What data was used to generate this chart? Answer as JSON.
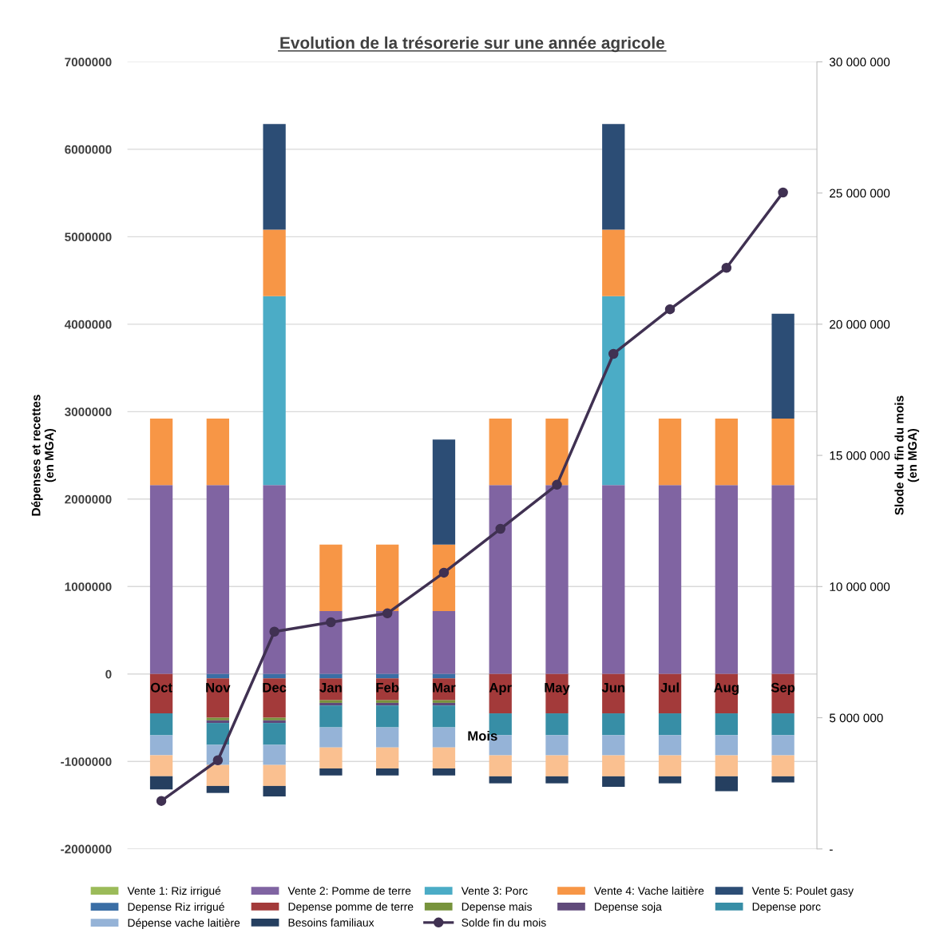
{
  "chart_data": {
    "type": "bar",
    "stacked": true,
    "title": "Evolution de la trésorerie sur une année agricole",
    "xlabel": "Mois",
    "ylabel": "Dépenses et recettes\n(en MGA)",
    "y2label": "Slode du fin du mois\n(en MGA)",
    "categories": [
      "Oct",
      "Nov",
      "Dec",
      "Jan",
      "Feb",
      "Mar",
      "Apr",
      "May",
      "Jun",
      "Jul",
      "Aug",
      "Sep"
    ],
    "ylim": [
      -2000000,
      7000000
    ],
    "yticks": [
      -2000000,
      -1000000,
      0,
      1000000,
      2000000,
      3000000,
      4000000,
      5000000,
      6000000,
      7000000
    ],
    "y2lim": [
      0,
      30000000
    ],
    "y2ticks": [
      {
        "value": 0,
        "label": "-"
      },
      {
        "value": 5000000,
        "label": "5 000 000"
      },
      {
        "value": 10000000,
        "label": "10 000 000"
      },
      {
        "value": 15000000,
        "label": "15 000 000"
      },
      {
        "value": 20000000,
        "label": "20 000 000"
      },
      {
        "value": 25000000,
        "label": "25 000 000"
      },
      {
        "value": 30000000,
        "label": "30 000 000"
      }
    ],
    "grid": "y",
    "legend": "bottom",
    "series": [
      {
        "name": "Vente 1: Riz irrigué",
        "color": "#9bbb59",
        "values": [
          0,
          0,
          0,
          0,
          0,
          0,
          0,
          0,
          0,
          0,
          0,
          0
        ]
      },
      {
        "name": "Vente 2: Pomme de terre",
        "color": "#8064a2",
        "values": [
          2160000,
          2160000,
          2160000,
          720000,
          720000,
          720000,
          2160000,
          2160000,
          2160000,
          2160000,
          2160000,
          2160000
        ]
      },
      {
        "name": "Vente 3: Porc",
        "color": "#4bacc6",
        "values": [
          0,
          0,
          2160000,
          0,
          0,
          0,
          0,
          0,
          2160000,
          0,
          0,
          0
        ]
      },
      {
        "name": "Vente 4: Vache laitière",
        "color": "#f79646",
        "values": [
          760000,
          760000,
          760000,
          760000,
          760000,
          760000,
          760000,
          760000,
          760000,
          760000,
          760000,
          760000
        ]
      },
      {
        "name": "Vente 5: Poulet gasy",
        "color": "#2c4d75",
        "values": [
          0,
          0,
          1210000,
          0,
          0,
          1200000,
          0,
          0,
          1210000,
          0,
          0,
          1200000
        ]
      },
      {
        "name": "Depense Riz irrigué",
        "color": "#3a6ea5",
        "values": [
          0,
          -50000,
          -50000,
          -50000,
          -50000,
          -50000,
          0,
          0,
          0,
          0,
          0,
          0
        ]
      },
      {
        "name": "Depense pomme de terre",
        "color": "#a33a3a",
        "values": [
          -450000,
          -450000,
          -450000,
          -250000,
          -250000,
          -250000,
          -450000,
          -450000,
          -450000,
          -450000,
          -450000,
          -450000
        ]
      },
      {
        "name": "Depense mais",
        "color": "#77933c",
        "values": [
          0,
          -30000,
          -30000,
          -30000,
          -30000,
          -30000,
          0,
          0,
          0,
          0,
          0,
          0
        ]
      },
      {
        "name": "Depense soja",
        "color": "#604a7b",
        "values": [
          0,
          -30000,
          -30000,
          -30000,
          -30000,
          -30000,
          0,
          0,
          0,
          0,
          0,
          0
        ]
      },
      {
        "name": "Depense porc",
        "color": "#378ea6",
        "values": [
          -250000,
          -250000,
          -250000,
          -250000,
          -250000,
          -250000,
          -250000,
          -250000,
          -250000,
          -250000,
          -250000,
          -250000
        ]
      },
      {
        "name": "Dépense vache laitière",
        "color": "#95b3d7",
        "values": [
          -230000,
          -230000,
          -230000,
          -230000,
          -230000,
          -230000,
          -230000,
          -230000,
          -230000,
          -230000,
          -230000,
          -230000
        ]
      },
      {
        "color": "#fac090",
        "values": [
          -240000,
          -240000,
          -240000,
          -240000,
          -240000,
          -240000,
          -240000,
          -240000,
          -240000,
          -240000,
          -240000,
          -240000
        ]
      },
      {
        "name": "Besoins familiaux",
        "color": "#253f60",
        "values": [
          -150000,
          -80000,
          -120000,
          -80000,
          -80000,
          -80000,
          -80000,
          -80000,
          -120000,
          -80000,
          -170000,
          -70000
        ]
      },
      {
        "name": "Solde fin du mois",
        "type": "line",
        "axis": "y2",
        "color": "#403152",
        "marker": "circle",
        "values": [
          1830000,
          3380000,
          8280000,
          8640000,
          8980000,
          10530000,
          12200000,
          13880000,
          18870000,
          20570000,
          22150000,
          25020000
        ]
      }
    ]
  }
}
